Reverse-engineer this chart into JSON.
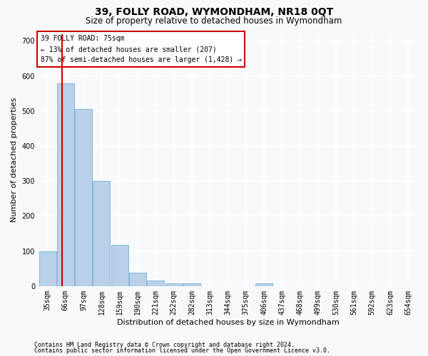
{
  "title": "39, FOLLY ROAD, WYMONDHAM, NR18 0QT",
  "subtitle": "Size of property relative to detached houses in Wymondham",
  "xlabel": "Distribution of detached houses by size in Wymondham",
  "ylabel": "Number of detached properties",
  "footnote1": "Contains HM Land Registry data © Crown copyright and database right 2024.",
  "footnote2": "Contains public sector information licensed under the Open Government Licence v3.0.",
  "categories": [
    "35sqm",
    "66sqm",
    "97sqm",
    "128sqm",
    "159sqm",
    "190sqm",
    "221sqm",
    "252sqm",
    "282sqm",
    "313sqm",
    "344sqm",
    "375sqm",
    "406sqm",
    "437sqm",
    "468sqm",
    "499sqm",
    "530sqm",
    "561sqm",
    "592sqm",
    "623sqm",
    "654sqm"
  ],
  "values": [
    100,
    578,
    505,
    300,
    117,
    38,
    15,
    8,
    7,
    0,
    0,
    0,
    7,
    0,
    0,
    0,
    0,
    0,
    0,
    0,
    0
  ],
  "bar_color": "#b8d0e8",
  "bar_edge_color": "#7bafd4",
  "red_color": "#cc0000",
  "annotation_line1": "39 FOLLY ROAD: 75sqm",
  "annotation_line2": "← 13% of detached houses are smaller (207)",
  "annotation_line3": "87% of semi-detached houses are larger (1,428) →",
  "annotation_box_facecolor": "#ffffff",
  "annotation_box_edgecolor": "#cc0000",
  "ylim": [
    0,
    720
  ],
  "yticks": [
    0,
    100,
    200,
    300,
    400,
    500,
    600,
    700
  ],
  "fig_facecolor": "#f7f9fc",
  "axes_facecolor": "#f7f9fc",
  "grid_color": "#ffffff",
  "title_fontsize": 10,
  "subtitle_fontsize": 8.5,
  "tick_fontsize": 7,
  "ylabel_fontsize": 8,
  "xlabel_fontsize": 8,
  "footnote_fontsize": 6,
  "property_sqm": 75,
  "bin_starts": [
    35,
    66,
    97,
    128,
    159,
    190,
    221,
    252,
    282,
    313,
    344,
    375,
    406,
    437,
    468,
    499,
    530,
    561,
    592,
    623,
    654
  ],
  "bin_width": 31
}
